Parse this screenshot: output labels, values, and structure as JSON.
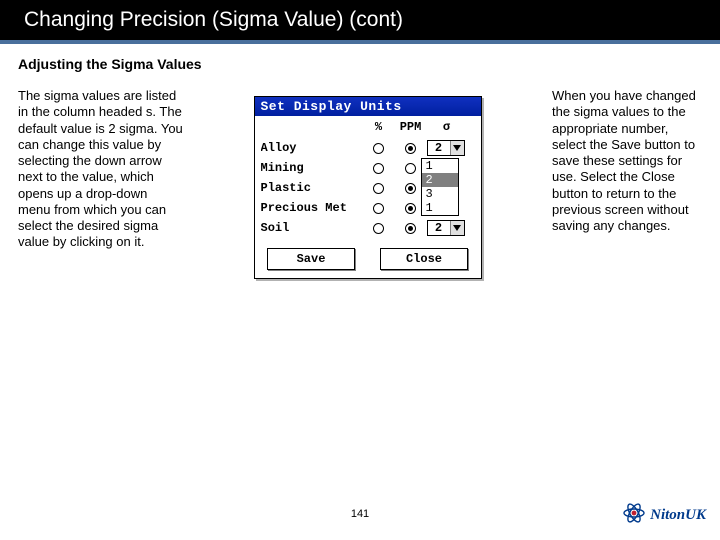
{
  "title": "Changing Precision (Sigma Value) (cont)",
  "subtitle": "Adjusting the Sigma Values",
  "left_text": "The sigma values are listed in the column headed s. The default value is 2 sigma. You can change this value by selecting the down arrow next to the value, which opens up a drop-down menu from which you can select the desired sigma value by clicking on it.",
  "right_text": "When you have changed the sigma values to the appropriate number, select the Save button to save these settings for use. Select the Close button to return to the previous screen without saving any changes.",
  "dialog": {
    "title": "Set Display Units",
    "headers": {
      "pct": "%",
      "ppm": "PPM",
      "sigma": "σ"
    },
    "rows": [
      {
        "label": "Alloy",
        "pct_checked": false,
        "ppm_checked": true,
        "sigma": "2",
        "show_dropdown": true,
        "menu": [
          "1",
          "2",
          "3",
          "1"
        ],
        "highlight_index": 1
      },
      {
        "label": "Mining",
        "pct_checked": false,
        "ppm_checked": false,
        "sigma": "",
        "show_dropdown": false
      },
      {
        "label": "Plastic",
        "pct_checked": false,
        "ppm_checked": true,
        "sigma": "",
        "show_dropdown": false
      },
      {
        "label": "Precious Met",
        "pct_checked": false,
        "ppm_checked": true,
        "sigma": "",
        "show_dropdown": false
      },
      {
        "label": "Soil",
        "pct_checked": false,
        "ppm_checked": true,
        "sigma": "2",
        "show_dropdown": true
      }
    ],
    "buttons": {
      "save": "Save",
      "close": "Close"
    }
  },
  "page_number": "141",
  "logo_text": "NitonUK",
  "colors": {
    "title_bg": "#000000",
    "title_fg": "#ffffff",
    "accent": "#496f9c",
    "dlg_title_bg": "#1030c0",
    "logo_color": "#003a8c",
    "atom_red": "#c02030"
  }
}
